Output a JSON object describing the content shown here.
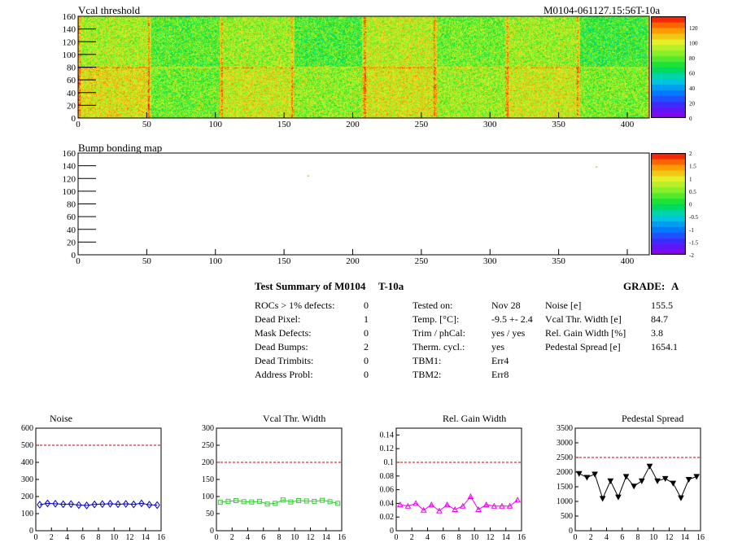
{
  "header": {
    "map_title": "Vcal threshold",
    "module_id": "M0104-061127.15:56T-10a",
    "bump_title": "Bump bonding map"
  },
  "summary": {
    "title": "Test Summary of M0104",
    "test_name": "T-10a",
    "grade_label": "GRADE:",
    "grade_value": "A",
    "col1": [
      {
        "label": "ROCs > 1% defects:",
        "value": "0"
      },
      {
        "label": "Dead Pixel:",
        "value": "1"
      },
      {
        "label": "Mask Defects:",
        "value": "0"
      },
      {
        "label": "Dead Bumps:",
        "value": "2"
      },
      {
        "label": "Dead Trimbits:",
        "value": "0"
      },
      {
        "label": "Address Probl:",
        "value": "0"
      }
    ],
    "col2": [
      {
        "label": "Tested on:",
        "value": "Nov 28"
      },
      {
        "label": "Temp. [°C]:",
        "value": "-9.5 +- 2.4"
      },
      {
        "label": "Trim / phCal:",
        "value": "yes / yes"
      },
      {
        "label": "Therm. cycl.:",
        "value": "yes"
      },
      {
        "label": "TBM1:",
        "value": "Err4"
      },
      {
        "label": "TBM2:",
        "value": "Err8"
      }
    ],
    "col3": [
      {
        "label": "Noise [e]",
        "value": "155.5"
      },
      {
        "label": "Vcal Thr. Width [e]",
        "value": "84.7"
      },
      {
        "label": "Rel. Gain Width [%]",
        "value": "3.8"
      },
      {
        "label": "Pedestal Spread [e]",
        "value": "1654.1"
      }
    ]
  },
  "colors": {
    "noise": "#0000cc",
    "vcal": "#33cc33",
    "gain": "#ee00ee",
    "pedestal": "#000000",
    "limit": "#cc0000"
  },
  "chart_data": [
    {
      "type": "heatmap",
      "title": "Vcal threshold",
      "xlim": [
        0,
        416
      ],
      "ylim": [
        0,
        160
      ],
      "x_ticks": [
        0,
        50,
        100,
        150,
        200,
        250,
        300,
        350,
        400
      ],
      "y_ticks": [
        0,
        20,
        40,
        60,
        80,
        100,
        120,
        140,
        160
      ],
      "z_ticks": [
        0,
        20,
        40,
        60,
        80,
        100,
        120
      ],
      "zlim": [
        0,
        135
      ],
      "rocs_top_mean": [
        92,
        80,
        90,
        78,
        95,
        84,
        90,
        76
      ],
      "rocs_bottom_mean": [
        102,
        83,
        98,
        88,
        100,
        90,
        98,
        85
      ]
    },
    {
      "type": "heatmap",
      "title": "Bump bonding map",
      "xlim": [
        0,
        416
      ],
      "ylim": [
        0,
        160
      ],
      "x_ticks": [
        0,
        50,
        100,
        150,
        200,
        250,
        300,
        350,
        400
      ],
      "y_ticks": [
        0,
        20,
        40,
        60,
        80,
        100,
        120,
        140,
        160
      ],
      "z_ticks": [
        "2",
        "1.5",
        "1",
        "0.5",
        "0",
        "-0.5",
        "-1",
        "-1.5",
        "-2"
      ],
      "zlim": [
        -2,
        2
      ],
      "points": [
        {
          "x": 167,
          "y": 125,
          "z": 0.5
        },
        {
          "x": 377,
          "y": 139,
          "z": 0.5
        }
      ]
    },
    {
      "type": "line",
      "title": "Noise",
      "x": [
        0,
        1,
        2,
        3,
        4,
        5,
        6,
        7,
        8,
        9,
        10,
        11,
        12,
        13,
        14,
        15
      ],
      "series": [
        {
          "values": [
            152,
            160,
            158,
            155,
            156,
            150,
            148,
            154,
            156,
            158,
            155,
            157,
            154,
            160,
            152,
            150
          ]
        }
      ],
      "xlim": [
        0,
        16
      ],
      "ylim": [
        0,
        600
      ],
      "limit": 500,
      "x_ticks": [
        0,
        2,
        4,
        6,
        8,
        10,
        12,
        14,
        16
      ],
      "y_ticks": [
        0,
        100,
        200,
        300,
        400,
        500,
        600
      ],
      "marker": "diamond"
    },
    {
      "type": "line",
      "title": "Vcal Thr. Width",
      "x": [
        0,
        1,
        2,
        3,
        4,
        5,
        6,
        7,
        8,
        9,
        10,
        11,
        12,
        13,
        14,
        15
      ],
      "series": [
        {
          "values": [
            83,
            86,
            88,
            85,
            84,
            86,
            78,
            80,
            90,
            84,
            88,
            87,
            86,
            89,
            85,
            80
          ]
        }
      ],
      "xlim": [
        0,
        16
      ],
      "ylim": [
        0,
        300
      ],
      "limit": 200,
      "x_ticks": [
        0,
        2,
        4,
        6,
        8,
        10,
        12,
        14,
        16
      ],
      "y_ticks": [
        0,
        50,
        100,
        150,
        200,
        250,
        300
      ],
      "marker": "square"
    },
    {
      "type": "line",
      "title": "Rel. Gain Width",
      "x": [
        0,
        1,
        2,
        3,
        4,
        5,
        6,
        7,
        8,
        9,
        10,
        11,
        12,
        13,
        14,
        15
      ],
      "series": [
        {
          "values": [
            0.038,
            0.036,
            0.04,
            0.03,
            0.038,
            0.029,
            0.038,
            0.031,
            0.036,
            0.05,
            0.031,
            0.038,
            0.036,
            0.036,
            0.036,
            0.045
          ]
        }
      ],
      "xlim": [
        0,
        16
      ],
      "ylim": [
        0,
        0.15
      ],
      "limit": 0.1,
      "x_ticks": [
        0,
        2,
        4,
        6,
        8,
        10,
        12,
        14,
        16
      ],
      "y_ticks": [
        0,
        0.02,
        0.04,
        0.06,
        0.08,
        0.1,
        0.12,
        0.14
      ],
      "marker": "triangle"
    },
    {
      "type": "line",
      "title": "Pedestal Spread",
      "x": [
        0,
        1,
        2,
        3,
        4,
        5,
        6,
        7,
        8,
        9,
        10,
        11,
        12,
        13,
        14,
        15
      ],
      "series": [
        {
          "values": [
            1950,
            1820,
            1930,
            1100,
            1700,
            1150,
            1850,
            1520,
            1700,
            2200,
            1700,
            1780,
            1620,
            1120,
            1750,
            1850
          ]
        }
      ],
      "xlim": [
        0,
        16
      ],
      "ylim": [
        0,
        3500
      ],
      "limit": 2500,
      "x_ticks": [
        0,
        2,
        4,
        6,
        8,
        10,
        12,
        14,
        16
      ],
      "y_ticks": [
        0,
        500,
        1000,
        1500,
        2000,
        2500,
        3000,
        3500
      ],
      "marker": "triangle-down"
    }
  ]
}
